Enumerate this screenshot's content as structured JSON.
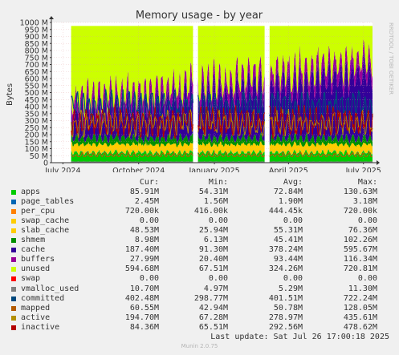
{
  "chart_data": {
    "type": "area",
    "title": "Memory usage - by year",
    "ylabel": "Bytes",
    "watermark": "RRDTOOL / TOBI OETIKER",
    "ylim": [
      0,
      1000
    ],
    "y_ticks": [
      "0",
      "50 M",
      "100 M",
      "150 M",
      "200 M",
      "250 M",
      "300 M",
      "350 M",
      "400 M",
      "450 M",
      "500 M",
      "550 M",
      "600 M",
      "650 M",
      "700 M",
      "750 M",
      "800 M",
      "850 M",
      "900 M",
      "950 M",
      "1000 M"
    ],
    "x_ticks": [
      "July 2024",
      "October 2024",
      "January 2025",
      "April 2025",
      "July 2025"
    ],
    "x_tick_days": [
      14,
      106,
      198,
      288,
      379
    ],
    "x_range_days": [
      0,
      390
    ],
    "data_start_day": 24,
    "gaps_days": [
      [
        173,
        177
      ],
      [
        260,
        264
      ]
    ],
    "stack_order": [
      "apps",
      "page_tables",
      "per_cpu",
      "swap_cache",
      "slab_cache",
      "shmem",
      "cache",
      "buffers",
      "unused",
      "swap"
    ],
    "line_order": [
      "vmalloc_used",
      "committed",
      "mapped",
      "active",
      "inactive"
    ],
    "series": [
      {
        "name": "apps",
        "color": "#00cc00",
        "kind": "area",
        "cur": "85.91M",
        "min": "54.31M",
        "avg": "72.84M",
        "max": "130.63M"
      },
      {
        "name": "page_tables",
        "color": "#0066b3",
        "kind": "area",
        "cur": "2.45M",
        "min": "1.56M",
        "avg": "1.90M",
        "max": "3.18M"
      },
      {
        "name": "per_cpu",
        "color": "#ff8000",
        "kind": "area",
        "cur": "720.00k",
        "min": "416.00k",
        "avg": "444.45k",
        "max": "720.00k"
      },
      {
        "name": "swap_cache",
        "color": "#ffcc00",
        "kind": "area",
        "cur": "0.00",
        "min": "0.00",
        "avg": "0.00",
        "max": "0.00"
      },
      {
        "name": "slab_cache",
        "color": "#ffcc00",
        "kind": "area",
        "cur": "48.53M",
        "min": "25.94M",
        "avg": "55.31M",
        "max": "76.36M"
      },
      {
        "name": "shmem",
        "color": "#008f00",
        "kind": "area",
        "cur": "8.98M",
        "min": "6.13M",
        "avg": "45.41M",
        "max": "102.26M"
      },
      {
        "name": "cache",
        "color": "#330099",
        "kind": "area",
        "cur": "187.40M",
        "min": "91.30M",
        "avg": "378.24M",
        "max": "595.67M"
      },
      {
        "name": "buffers",
        "color": "#990099",
        "kind": "area",
        "cur": "27.99M",
        "min": "20.40M",
        "avg": "93.44M",
        "max": "116.34M"
      },
      {
        "name": "unused",
        "color": "#ccff00",
        "kind": "area",
        "cur": "594.68M",
        "min": "67.51M",
        "avg": "324.26M",
        "max": "720.81M"
      },
      {
        "name": "swap",
        "color": "#ff0000",
        "kind": "area",
        "cur": "0.00",
        "min": "0.00",
        "avg": "0.00",
        "max": "0.00"
      },
      {
        "name": "vmalloc_used",
        "color": "#808080",
        "kind": "line",
        "cur": "10.70M",
        "min": "4.97M",
        "avg": "5.29M",
        "max": "11.30M"
      },
      {
        "name": "committed",
        "color": "#00487d",
        "kind": "line",
        "cur": "402.48M",
        "min": "298.77M",
        "avg": "401.51M",
        "max": "722.24M"
      },
      {
        "name": "mapped",
        "color": "#b35a00",
        "kind": "line",
        "cur": "60.55M",
        "min": "42.94M",
        "avg": "50.78M",
        "max": "128.05M"
      },
      {
        "name": "active",
        "color": "#b38f00",
        "kind": "line",
        "cur": "194.70M",
        "min": "67.28M",
        "avg": "278.97M",
        "max": "435.61M"
      },
      {
        "name": "inactive",
        "color": "#b30000",
        "kind": "line",
        "cur": "84.36M",
        "min": "65.51M",
        "avg": "292.56M",
        "max": "478.62M"
      }
    ]
  },
  "legend": {
    "headers": [
      "Cur:",
      "Min:",
      "Avg:",
      "Max:"
    ]
  },
  "footer": {
    "last_update": "Last update:  Sat Jul 26 17:00:18 2025",
    "munin": "Munin 2.0.75"
  }
}
